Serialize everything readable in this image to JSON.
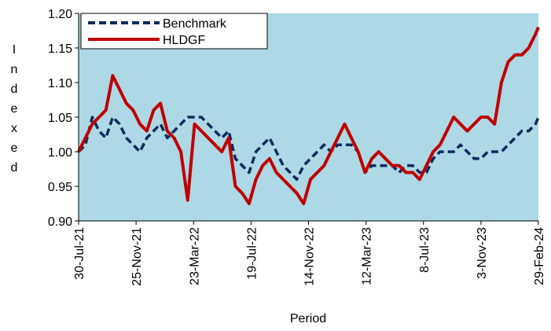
{
  "chart_data": {
    "type": "line",
    "x_label": "Period",
    "y_label": "Indexed",
    "x": [
      "2021-07-30",
      "2021-08-13",
      "2021-08-27",
      "2021-09-10",
      "2021-09-24",
      "2021-10-08",
      "2021-10-22",
      "2021-11-05",
      "2021-11-19",
      "2021-12-03",
      "2021-12-17",
      "2021-12-31",
      "2022-01-14",
      "2022-01-28",
      "2022-02-11",
      "2022-02-25",
      "2022-03-11",
      "2022-03-25",
      "2022-04-08",
      "2022-04-22",
      "2022-05-06",
      "2022-05-20",
      "2022-06-03",
      "2022-06-17",
      "2022-07-01",
      "2022-07-15",
      "2022-07-29",
      "2022-08-12",
      "2022-08-26",
      "2022-09-09",
      "2022-09-23",
      "2022-10-07",
      "2022-10-21",
      "2022-11-04",
      "2022-11-18",
      "2022-12-02",
      "2022-12-16",
      "2022-12-30",
      "2023-01-13",
      "2023-01-27",
      "2023-02-10",
      "2023-02-24",
      "2023-03-10",
      "2023-03-24",
      "2023-04-07",
      "2023-04-21",
      "2023-05-05",
      "2023-05-19",
      "2023-06-02",
      "2023-06-16",
      "2023-06-30",
      "2023-07-14",
      "2023-07-28",
      "2023-08-11",
      "2023-08-25",
      "2023-09-08",
      "2023-09-22",
      "2023-10-06",
      "2023-10-20",
      "2023-11-03",
      "2023-11-17",
      "2023-12-01",
      "2023-12-15",
      "2023-12-29",
      "2024-01-12",
      "2024-01-26",
      "2024-02-09",
      "2024-02-23",
      "2024-02-29"
    ],
    "series": [
      {
        "name": "Benchmark",
        "color": "#0d2b5e",
        "dashed": true,
        "values": [
          1.0,
          1.01,
          1.05,
          1.03,
          1.02,
          1.05,
          1.04,
          1.02,
          1.01,
          1.0,
          1.02,
          1.03,
          1.04,
          1.02,
          1.03,
          1.04,
          1.05,
          1.05,
          1.05,
          1.04,
          1.03,
          1.02,
          1.03,
          0.99,
          0.98,
          0.97,
          1.0,
          1.01,
          1.02,
          1.0,
          0.98,
          0.97,
          0.96,
          0.98,
          0.99,
          1.0,
          1.01,
          1.0,
          1.01,
          1.01,
          1.01,
          1.0,
          0.97,
          0.98,
          0.98,
          0.98,
          0.98,
          0.97,
          0.98,
          0.98,
          0.97,
          0.97,
          0.99,
          1.0,
          1.0,
          1.0,
          1.01,
          1.0,
          0.99,
          0.99,
          1.0,
          1.0,
          1.0,
          1.01,
          1.02,
          1.03,
          1.03,
          1.04,
          1.05
        ]
      },
      {
        "name": "HLDGF",
        "color": "#c00000",
        "dashed": false,
        "values": [
          1.0,
          1.02,
          1.04,
          1.05,
          1.06,
          1.11,
          1.09,
          1.07,
          1.06,
          1.04,
          1.03,
          1.06,
          1.07,
          1.03,
          1.02,
          1.0,
          0.93,
          1.04,
          1.03,
          1.02,
          1.01,
          1.0,
          1.02,
          0.95,
          0.94,
          0.925,
          0.96,
          0.98,
          0.99,
          0.97,
          0.96,
          0.95,
          0.94,
          0.925,
          0.96,
          0.97,
          0.98,
          1.0,
          1.02,
          1.04,
          1.02,
          1.0,
          0.97,
          0.99,
          1.0,
          0.99,
          0.98,
          0.98,
          0.97,
          0.97,
          0.96,
          0.98,
          1.0,
          1.01,
          1.03,
          1.05,
          1.04,
          1.03,
          1.04,
          1.05,
          1.05,
          1.04,
          1.1,
          1.13,
          1.14,
          1.14,
          1.15,
          1.17,
          1.18
        ]
      }
    ],
    "xlim": [
      "2021-07-30",
      "2024-02-29"
    ],
    "xticks": [
      {
        "value": "2021-07-30",
        "label": "30-Jul-21"
      },
      {
        "value": "2021-11-25",
        "label": "25-Nov-21"
      },
      {
        "value": "2022-03-23",
        "label": "23-Mar-22"
      },
      {
        "value": "2022-07-19",
        "label": "19-Jul-22"
      },
      {
        "value": "2022-11-14",
        "label": "14-Nov-22"
      },
      {
        "value": "2023-03-12",
        "label": "12-Mar-23"
      },
      {
        "value": "2023-07-08",
        "label": "8-Jul-23"
      },
      {
        "value": "2023-11-03",
        "label": "3-Nov-23"
      },
      {
        "value": "2024-02-29",
        "label": "29-Feb-24"
      }
    ],
    "ylim": [
      0.9,
      1.2
    ],
    "yticks": [
      {
        "value": 0.9,
        "label": "0.90"
      },
      0.95,
      {
        "value": 1.0,
        "label": "1.00"
      },
      1.05,
      {
        "value": 1.1,
        "label": "1.10"
      },
      1.15,
      {
        "value": 1.2,
        "label": "1.20"
      }
    ],
    "background": "#add8e6",
    "legend": "upper left"
  }
}
